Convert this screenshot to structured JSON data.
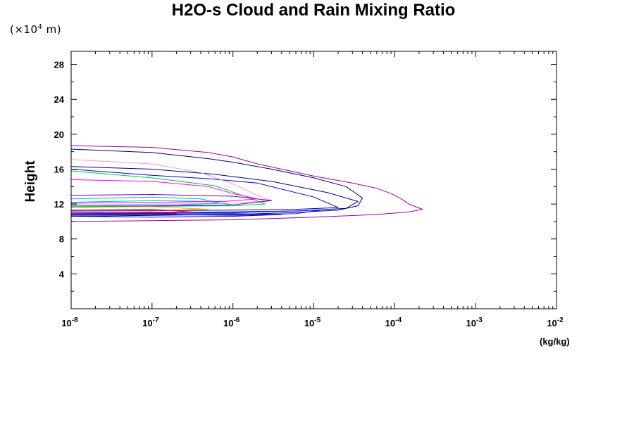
{
  "chart_data": {
    "type": "line",
    "title": "H2O-s Cloud and Rain Mixing Ratio",
    "ylabel": "Height",
    "y_unit": "(×10⁴ m)",
    "y_unit_parts": {
      "prefix": "(×10",
      "exp": "4",
      "suffix": " m)"
    },
    "xlabel": "",
    "x_unit": "(kg/kg)",
    "x_scale": "log",
    "xlim": [
      1e-08,
      0.01
    ],
    "ylim": [
      0,
      29.5
    ],
    "x_ticks": [
      {
        "base": "10",
        "exp": "-8",
        "value": 1e-08
      },
      {
        "base": "10",
        "exp": "-7",
        "value": 1e-07
      },
      {
        "base": "10",
        "exp": "-6",
        "value": 1e-06
      },
      {
        "base": "10",
        "exp": "-5",
        "value": 1e-05
      },
      {
        "base": "10",
        "exp": "-4",
        "value": 0.0001
      },
      {
        "base": "10",
        "exp": "-3",
        "value": 0.001
      },
      {
        "base": "10",
        "exp": "-2",
        "value": 0.01
      }
    ],
    "y_ticks": [
      "4",
      "8",
      "12",
      "16",
      "20",
      "24",
      "28"
    ],
    "grid": false,
    "legend": "none",
    "series": [
      {
        "color": "#990099",
        "points": [
          [
            1e-08,
            18.7
          ],
          [
            1e-07,
            18.5
          ],
          [
            5e-07,
            17.9
          ],
          [
            1e-06,
            17.4
          ],
          [
            2e-06,
            16.6
          ],
          [
            4e-06,
            16.0
          ],
          [
            1e-05,
            15.2
          ],
          [
            3e-05,
            14.4
          ],
          [
            6e-05,
            13.8
          ],
          [
            9e-05,
            13.2
          ],
          [
            0.00012,
            12.6
          ],
          [
            0.00015,
            12.0
          ],
          [
            0.00022,
            11.4
          ],
          [
            0.00015,
            11.1
          ],
          [
            6e-05,
            10.8
          ],
          [
            1e-05,
            10.5
          ],
          [
            1e-06,
            10.2
          ],
          [
            1e-07,
            10.1
          ],
          [
            1e-08,
            10.0
          ]
        ]
      },
      {
        "color": "#000066",
        "points": [
          [
            1e-08,
            18.3
          ],
          [
            1e-07,
            17.9
          ],
          [
            5e-07,
            17.2
          ],
          [
            1e-06,
            16.8
          ],
          [
            3e-06,
            16.0
          ],
          [
            1e-05,
            15.0
          ],
          [
            2.5e-05,
            14.0
          ],
          [
            4e-05,
            12.7
          ],
          [
            3.5e-05,
            11.8
          ],
          [
            2e-05,
            11.3
          ],
          [
            5e-06,
            11.0
          ],
          [
            1e-06,
            10.8
          ],
          [
            1e-07,
            10.7
          ],
          [
            1e-08,
            10.6
          ]
        ]
      },
      {
        "color": "#000080",
        "points": [
          [
            1e-08,
            16.3
          ],
          [
            1e-07,
            16.0
          ],
          [
            6e-07,
            15.4
          ],
          [
            3e-06,
            14.6
          ],
          [
            1.5e-05,
            13.3
          ],
          [
            3.5e-05,
            12.3
          ],
          [
            2.5e-05,
            11.5
          ],
          [
            6e-06,
            11.2
          ],
          [
            1e-06,
            11.1
          ],
          [
            1e-08,
            11.0
          ]
        ]
      },
      {
        "color": "#0000cc",
        "points": [
          [
            1e-08,
            16.0
          ],
          [
            1e-07,
            15.3
          ],
          [
            5e-07,
            14.9
          ],
          [
            2e-06,
            14.4
          ],
          [
            1e-05,
            12.8
          ],
          [
            2e-05,
            11.6
          ],
          [
            6e-06,
            11.4
          ],
          [
            1e-06,
            11.3
          ],
          [
            1e-08,
            11.2
          ]
        ]
      },
      {
        "color": "#ff99cc",
        "points": [
          [
            1e-08,
            17.1
          ],
          [
            1e-07,
            16.6
          ],
          [
            4e-07,
            15.6
          ],
          [
            1e-06,
            14.3
          ],
          [
            2e-06,
            13.0
          ],
          [
            3e-06,
            12.4
          ],
          [
            1e-06,
            12.1
          ],
          [
            1e-08,
            11.9
          ]
        ]
      },
      {
        "color": "#00cc33",
        "points": [
          [
            1e-08,
            15.8
          ],
          [
            1e-07,
            15.0
          ],
          [
            6e-07,
            14.1
          ],
          [
            1.5e-06,
            12.8
          ],
          [
            2.5e-06,
            12.0
          ],
          [
            1e-06,
            11.8
          ],
          [
            1e-08,
            11.7
          ]
        ]
      },
      {
        "color": "#00cc99",
        "points": [
          [
            1e-08,
            12.2
          ],
          [
            1e-07,
            12.4
          ],
          [
            5e-07,
            12.3
          ],
          [
            1e-06,
            11.9
          ],
          [
            1e-07,
            11.8
          ],
          [
            1e-08,
            11.8
          ]
        ]
      },
      {
        "color": "#00aaff",
        "points": [
          [
            1e-08,
            12.6
          ],
          [
            1e-07,
            12.8
          ],
          [
            4e-07,
            12.6
          ],
          [
            7e-07,
            12.1
          ],
          [
            2e-07,
            11.9
          ],
          [
            1e-08,
            11.8
          ]
        ]
      },
      {
        "color": "#6600cc",
        "points": [
          [
            1e-08,
            13.0
          ],
          [
            1e-07,
            13.1
          ],
          [
            1e-06,
            12.9
          ],
          [
            3e-06,
            12.4
          ],
          [
            1e-06,
            11.9
          ],
          [
            1e-08,
            11.6
          ]
        ]
      },
      {
        "color": "#ffaa00",
        "points": [
          [
            1e-08,
            11.6
          ],
          [
            1e-07,
            11.7
          ],
          [
            5e-07,
            11.4
          ],
          [
            1e-07,
            11.3
          ],
          [
            1e-08,
            11.3
          ]
        ]
      },
      {
        "color": "#ff0066",
        "points": [
          [
            1e-08,
            11.3
          ],
          [
            1e-07,
            11.4
          ],
          [
            3e-07,
            11.1
          ],
          [
            1e-08,
            11.0
          ]
        ]
      },
      {
        "color": "#cc0000",
        "points": [
          [
            1e-08,
            11.0
          ],
          [
            1e-07,
            11.1
          ],
          [
            2e-07,
            10.9
          ],
          [
            1e-08,
            10.9
          ]
        ]
      },
      {
        "color": "#ff00ff",
        "points": [
          [
            1e-08,
            14.8
          ],
          [
            1e-07,
            14.6
          ],
          [
            5e-07,
            14.0
          ],
          [
            1e-06,
            13.2
          ],
          [
            2e-06,
            12.6
          ],
          [
            8e-07,
            12.3
          ],
          [
            1e-08,
            12.1
          ]
        ]
      },
      {
        "color": "#000099",
        "points": [
          [
            1e-08,
            10.6
          ],
          [
            1e-07,
            10.5
          ],
          [
            1e-06,
            10.6
          ],
          [
            4e-06,
            10.8
          ],
          [
            1e-06,
            10.9
          ],
          [
            1e-08,
            10.8
          ]
        ]
      },
      {
        "color": "#1a1aff",
        "points": [
          [
            1e-08,
            10.7
          ],
          [
            1e-07,
            10.8
          ],
          [
            1e-06,
            10.7
          ],
          [
            6e-06,
            10.9
          ],
          [
            1.2e-05,
            11.3
          ],
          [
            1e-06,
            11.0
          ],
          [
            1e-08,
            10.9
          ]
        ]
      }
    ]
  }
}
